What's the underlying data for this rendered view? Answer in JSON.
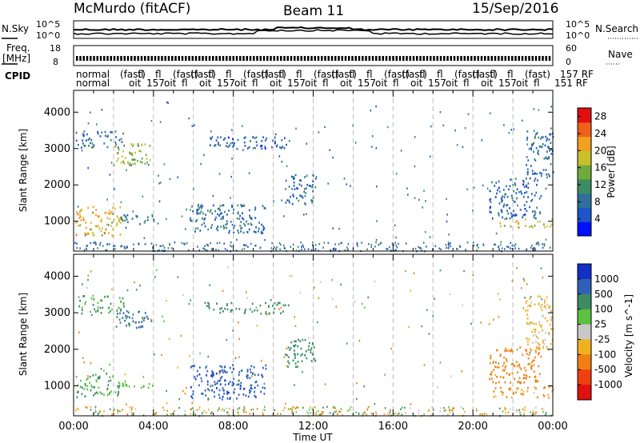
{
  "header": {
    "station": "McMurdo (fitACF)",
    "beam": "Beam 11",
    "date": "15/Sep/2016"
  },
  "noise_panel": {
    "left_label": "N.Sky",
    "right_label": "N.Search",
    "left_ticks": [
      "10^5",
      "10^0"
    ],
    "right_ticks": [
      "10^5",
      "10^0"
    ]
  },
  "freq_panel": {
    "left_label_1": "Freq.",
    "left_label_2": "[MHz]",
    "right_label": "Nave",
    "left_ticks": [
      "18",
      "8"
    ],
    "right_ticks": [
      "60",
      "0"
    ]
  },
  "cpid_panel": {
    "left_label": "CPID",
    "row1_text": "normal",
    "row2_text": "normal",
    "right_text_1": "157 RF",
    "right_text_2": "151 RF"
  },
  "chart_data": [
    {
      "type": "heatmap",
      "title": "",
      "xlabel": "Time UT",
      "ylabel": "Slant Range [km]",
      "x_ticks": [
        "00:00",
        "04:00",
        "08:00",
        "12:00",
        "16:00",
        "20:00",
        "00:00"
      ],
      "xlim_hours": [
        0,
        24
      ],
      "y_ticks": [
        1000,
        2000,
        3000,
        4000
      ],
      "ylim": [
        180,
        4600
      ],
      "colorbar_label": "Power [dB]",
      "colorbar_ticks": [
        "4",
        "8",
        "12",
        "16",
        "20",
        "24",
        "28"
      ],
      "colorbar_range": [
        0,
        30
      ],
      "colorbar_colors": [
        "#0010ff",
        "#1e55c8",
        "#2f6f9a",
        "#3c8c63",
        "#6faa3a",
        "#c9c12a",
        "#f2a020",
        "#f06018",
        "#e01010"
      ],
      "regions": [
        {
          "t0": 0.1,
          "t1": 2.5,
          "r0": 3050,
          "r1": 3500,
          "value": 8
        },
        {
          "t0": 2.0,
          "t1": 3.9,
          "r0": 2600,
          "r1": 3150,
          "value": 16
        },
        {
          "t0": 0.1,
          "t1": 2.4,
          "r0": 600,
          "r1": 1450,
          "value": 20
        },
        {
          "t0": 2.2,
          "t1": 4.0,
          "r0": 950,
          "r1": 1200,
          "value": 9
        },
        {
          "t0": 5.8,
          "t1": 9.6,
          "r0": 700,
          "r1": 1500,
          "value": 8
        },
        {
          "t0": 6.5,
          "t1": 10.8,
          "r0": 3000,
          "r1": 3350,
          "value": 7
        },
        {
          "t0": 10.5,
          "t1": 12.1,
          "r0": 1500,
          "r1": 2300,
          "value": 8
        },
        {
          "t0": 21.0,
          "t1": 24.0,
          "r0": 850,
          "r1": 1100,
          "value": 18
        },
        {
          "t0": 20.8,
          "t1": 23.4,
          "r0": 1100,
          "r1": 2200,
          "value": 7
        },
        {
          "t0": 22.6,
          "t1": 24.0,
          "r0": 2200,
          "r1": 3500,
          "value": 8
        }
      ]
    },
    {
      "type": "heatmap",
      "title": "",
      "xlabel": "Time UT",
      "ylabel": "Slant Range [km]",
      "x_ticks": [
        "00:00",
        "04:00",
        "08:00",
        "12:00",
        "16:00",
        "20:00",
        "00:00"
      ],
      "xlim_hours": [
        0,
        24
      ],
      "y_ticks": [
        1000,
        2000,
        3000,
        4000
      ],
      "ylim": [
        180,
        4600
      ],
      "colorbar_label": "Velocity [m s^-1]",
      "colorbar_ticks": [
        "1000",
        "500",
        "100",
        "25",
        "-25",
        "-100",
        "-500",
        "-1000"
      ],
      "colorbar_colors": [
        "#1030c8",
        "#2f60b8",
        "#3c8c63",
        "#5cc040",
        "#c8c8c8",
        "#f0b020",
        "#f08010",
        "#f04010",
        "#e01010"
      ],
      "regions": [
        {
          "t0": 0.1,
          "t1": 2.5,
          "r0": 3000,
          "r1": 3500,
          "value": 100
        },
        {
          "t0": 2.0,
          "t1": 3.9,
          "r0": 2600,
          "r1": 3100,
          "value": 500
        },
        {
          "t0": 0.1,
          "t1": 2.4,
          "r0": 700,
          "r1": 1400,
          "value": 100
        },
        {
          "t0": 2.2,
          "t1": 4.0,
          "r0": 950,
          "r1": 1150,
          "value": 60
        },
        {
          "t0": 5.8,
          "t1": 9.6,
          "r0": 650,
          "r1": 1600,
          "value": 800
        },
        {
          "t0": 6.5,
          "t1": 10.8,
          "r0": 3000,
          "r1": 3300,
          "value": 200
        },
        {
          "t0": 10.5,
          "t1": 12.1,
          "r0": 1500,
          "r1": 2300,
          "value": 300
        },
        {
          "t0": 21.0,
          "t1": 24.0,
          "r0": 700,
          "r1": 1000,
          "value": -100
        },
        {
          "t0": 20.8,
          "t1": 23.4,
          "r0": 1100,
          "r1": 2100,
          "value": -300
        },
        {
          "t0": 22.6,
          "t1": 24.0,
          "r0": 2000,
          "r1": 3500,
          "value": -40
        }
      ]
    }
  ]
}
